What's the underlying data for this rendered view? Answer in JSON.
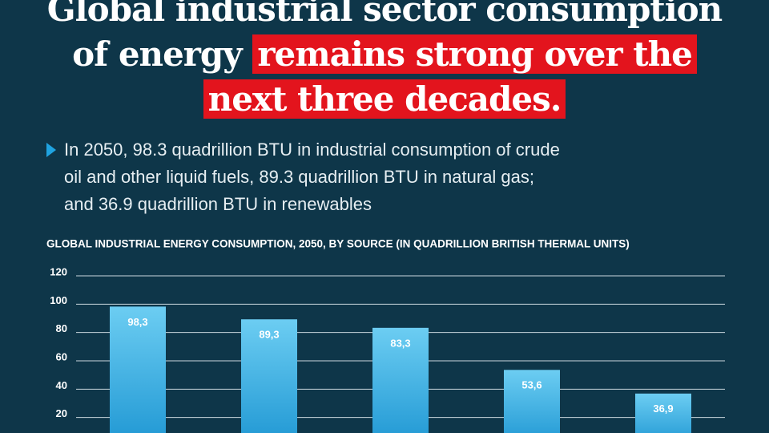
{
  "headline": {
    "lines": [
      [
        {
          "text": "Global industrial sector consumption"
        }
      ],
      [
        {
          "text": "of energy"
        },
        {
          "text": "remains strong over the",
          "highlight": true
        }
      ],
      [
        {
          "text": "next three decades.",
          "highlight": true
        }
      ]
    ]
  },
  "bullet": {
    "lines": [
      "In 2050, 98.3 quadrillion BTU in industrial consumption of crude",
      "oil and other liquid fuels, 89.3 quadrillion BTU in natural gas;",
      "and 36.9 quadrillion BTU in renewables"
    ]
  },
  "chart_data": {
    "type": "bar",
    "title": "GLOBAL INDUSTRIAL ENERGY CONSUMPTION, 2050, BY SOURCE (IN QUADRILLION BRITISH THERMAL UNITS)",
    "categories": [
      null,
      null,
      null,
      null,
      null
    ],
    "values": [
      98.3,
      89.3,
      83.3,
      53.6,
      36.9
    ],
    "value_labels": [
      "98,3",
      "89,3",
      "83,3",
      "53,6",
      "36,9"
    ],
    "color": "#3db0e6",
    "ylim": [
      0,
      120
    ],
    "yticks": [
      20,
      40,
      60,
      80,
      100,
      120
    ],
    "grid": true
  }
}
